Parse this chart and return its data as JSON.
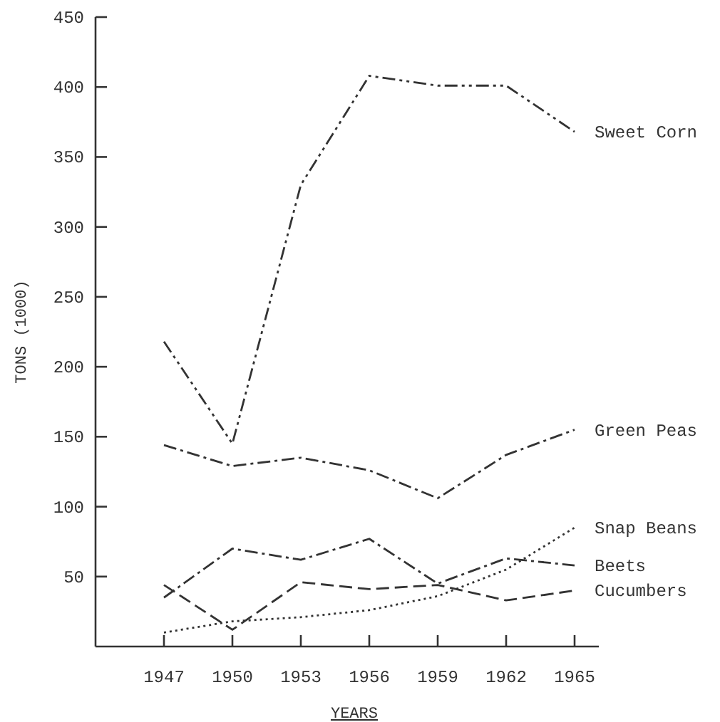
{
  "chart_data": {
    "type": "line",
    "xlabel": "YEARS",
    "ylabel": "TONS (1000)",
    "categories": [
      "1947",
      "1950",
      "1953",
      "1956",
      "1959",
      "1962",
      "1965"
    ],
    "ylim": [
      0,
      450
    ],
    "yticks": [
      50,
      100,
      150,
      200,
      250,
      300,
      350,
      400,
      450
    ],
    "grid": false,
    "marker": "none",
    "series": [
      {
        "name": "Sweet Corn",
        "color": "#333333",
        "line_style": "dashdotdot",
        "values": [
          218,
          145,
          330,
          408,
          401,
          401,
          368
        ]
      },
      {
        "name": "Green Peas",
        "color": "#333333",
        "line_style": "dashdot",
        "values": [
          144,
          129,
          135,
          126,
          106,
          137,
          155
        ]
      },
      {
        "name": "Snap Beans",
        "color": "#333333",
        "line_style": "dotted",
        "values": [
          10,
          18,
          21,
          26,
          36,
          55,
          85
        ]
      },
      {
        "name": "Beets",
        "color": "#333333",
        "line_style": "dashdot",
        "values": [
          35,
          70,
          62,
          77,
          45,
          63,
          58
        ]
      },
      {
        "name": "Cucumbers",
        "color": "#333333",
        "line_style": "dashed",
        "values": [
          44,
          12,
          46,
          41,
          44,
          33,
          40
        ]
      }
    ]
  }
}
